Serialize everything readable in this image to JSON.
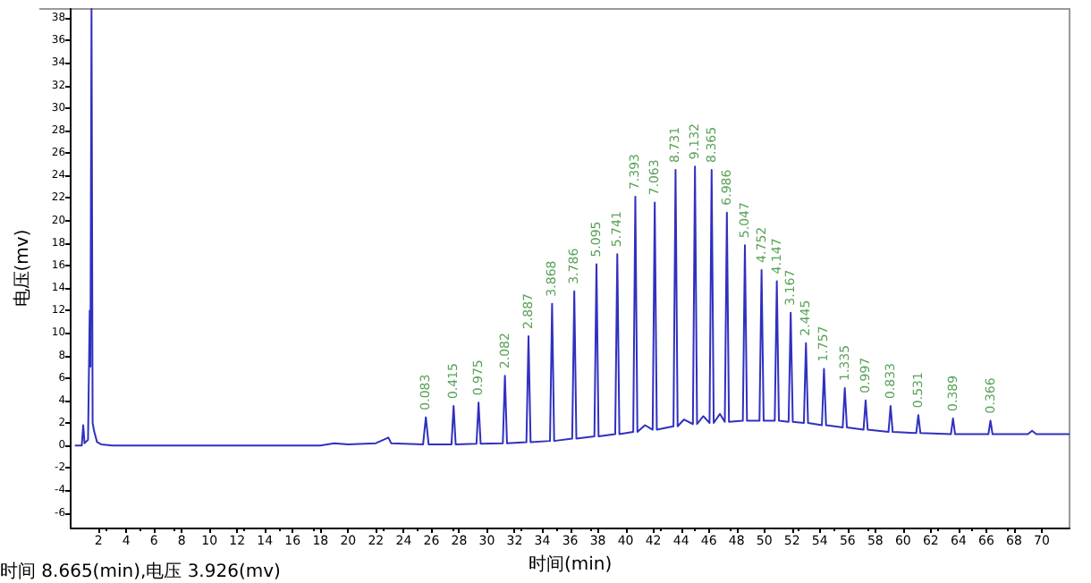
{
  "chart_data": {
    "type": "line",
    "xlabel": "时间(min)",
    "ylabel": "电压(mv)",
    "annotations": [
      "时间 8.665(min),电压 3.926(mv)",
      {
        "text": "0.083",
        "x": 25.6,
        "y": 2.5
      },
      {
        "text": "0.415",
        "x": 27.6,
        "y": 3.5
      },
      {
        "text": "0.975",
        "x": 29.4,
        "y": 3.8
      },
      {
        "text": "2.082",
        "x": 31.3,
        "y": 6.2
      },
      {
        "text": "2.887",
        "x": 33.0,
        "y": 9.7
      },
      {
        "text": "3.868",
        "x": 34.7,
        "y": 12.6
      },
      {
        "text": "3.786",
        "x": 36.3,
        "y": 13.7
      },
      {
        "text": "5.095",
        "x": 37.9,
        "y": 16.1
      },
      {
        "text": "5.741",
        "x": 39.4,
        "y": 17.0
      },
      {
        "text": "7.393",
        "x": 40.7,
        "y": 22.1
      },
      {
        "text": "7.063",
        "x": 42.1,
        "y": 21.6
      },
      {
        "text": "8.731",
        "x": 43.6,
        "y": 24.5
      },
      {
        "text": "9.132",
        "x": 45.0,
        "y": 24.8
      },
      {
        "text": "8.365",
        "x": 46.2,
        "y": 24.5
      },
      {
        "text": "6.986",
        "x": 47.3,
        "y": 20.7
      },
      {
        "text": "5.047",
        "x": 48.6,
        "y": 17.8
      },
      {
        "text": "4.752",
        "x": 49.8,
        "y": 15.6
      },
      {
        "text": "4.147",
        "x": 50.9,
        "y": 14.6
      },
      {
        "text": "3.167",
        "x": 51.9,
        "y": 11.8
      },
      {
        "text": "2.445",
        "x": 53.0,
        "y": 9.1
      },
      {
        "text": "1.757",
        "x": 54.3,
        "y": 6.8
      },
      {
        "text": "1.335",
        "x": 55.8,
        "y": 5.1
      },
      {
        "text": "0.997",
        "x": 57.3,
        "y": 4.0
      },
      {
        "text": "0.833",
        "x": 59.1,
        "y": 3.5
      },
      {
        "text": "0.531",
        "x": 61.1,
        "y": 2.7
      },
      {
        "text": "0.389",
        "x": 63.6,
        "y": 2.4
      },
      {
        "text": "0.366",
        "x": 66.3,
        "y": 2.2
      }
    ],
    "x": [
      0.3,
      0.8,
      0.9,
      1.0,
      1.25,
      1.37,
      1.42,
      1.5,
      1.58,
      1.7,
      1.9,
      2.2,
      3,
      18,
      19,
      20,
      22,
      22.9,
      23.1,
      25.4,
      25.6,
      25.8,
      27.45,
      27.6,
      27.75,
      29.25,
      29.4,
      29.55,
      31.15,
      31.3,
      31.45,
      32.85,
      33.0,
      33.15,
      34.55,
      34.7,
      34.85,
      36.15,
      36.3,
      36.45,
      37.75,
      37.9,
      38.05,
      39.25,
      39.4,
      39.55,
      40.55,
      40.7,
      40.85,
      41.4,
      41.95,
      42.1,
      42.25,
      43.45,
      43.6,
      43.75,
      44.2,
      44.85,
      45.0,
      45.15,
      45.6,
      46.05,
      46.2,
      46.35,
      46.8,
      47.15,
      47.3,
      47.45,
      48.45,
      48.6,
      48.75,
      49.65,
      49.8,
      49.95,
      50.75,
      50.9,
      51.05,
      51.75,
      51.9,
      52.05,
      52.85,
      53.0,
      53.15,
      54.15,
      54.3,
      54.45,
      55.65,
      55.8,
      55.95,
      57.15,
      57.3,
      57.45,
      58.95,
      59.1,
      59.25,
      60.95,
      61.1,
      61.25,
      63.45,
      63.6,
      63.75,
      66.15,
      66.3,
      66.45,
      69,
      69.3,
      69.6,
      72
    ],
    "values": [
      0,
      0,
      1.8,
      0.2,
      0.5,
      12,
      7,
      38.8,
      2,
      1.2,
      0.3,
      0.1,
      0,
      0,
      0.2,
      0.1,
      0.2,
      0.7,
      0.2,
      0.1,
      2.5,
      0.1,
      0.1,
      3.5,
      0.1,
      0.15,
      3.8,
      0.15,
      0.2,
      6.2,
      0.2,
      0.3,
      9.7,
      0.3,
      0.4,
      12.6,
      0.4,
      0.6,
      13.7,
      0.6,
      0.8,
      16.1,
      0.8,
      1.0,
      17.0,
      1.0,
      1.2,
      22.1,
      1.2,
      1.8,
      1.4,
      21.6,
      1.4,
      1.7,
      24.5,
      1.7,
      2.3,
      1.9,
      24.8,
      1.9,
      2.6,
      2.0,
      24.5,
      2.0,
      2.8,
      2.1,
      20.7,
      2.1,
      2.2,
      17.8,
      2.2,
      2.2,
      15.6,
      2.2,
      2.2,
      14.6,
      2.2,
      2.1,
      11.8,
      2.1,
      2.0,
      9.1,
      2.0,
      1.8,
      6.8,
      1.8,
      1.6,
      5.1,
      1.6,
      1.4,
      4.0,
      1.4,
      1.2,
      3.5,
      1.2,
      1.1,
      2.7,
      1.1,
      1.0,
      2.4,
      1.0,
      1.0,
      2.2,
      1.0,
      1.0,
      1.3,
      1.0,
      1.0
    ],
    "color": "#3030c0",
    "marker": "none",
    "xlim": [
      0,
      72
    ],
    "xticks": [
      2,
      4,
      6,
      8,
      10,
      12,
      14,
      16,
      18,
      20,
      22,
      24,
      26,
      28,
      30,
      32,
      34,
      36,
      38,
      40,
      42,
      44,
      46,
      48,
      50,
      52,
      54,
      56,
      58,
      60,
      62,
      64,
      66,
      68,
      70
    ],
    "ylim": [
      -7.3,
      38.8
    ],
    "yticks": [
      -6,
      -4,
      -2,
      0,
      2,
      4,
      6,
      8,
      10,
      12,
      14,
      16,
      18,
      20,
      22,
      24,
      26,
      28,
      30,
      32,
      34,
      36,
      38
    ],
    "grid": false
  }
}
